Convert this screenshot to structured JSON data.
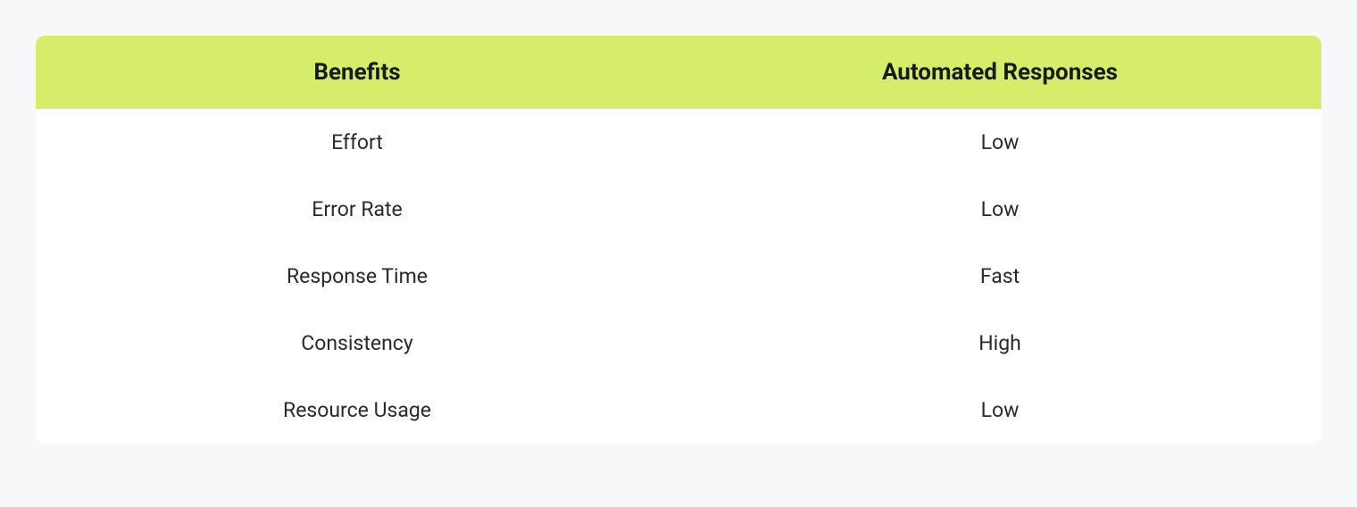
{
  "table": {
    "type": "table",
    "header_background_color": "#d5ed6b",
    "body_background_color": "#ffffff",
    "page_background_color": "#f7f8fa",
    "header_text_color": "#1a1a1a",
    "body_text_color": "#2a2a2a",
    "header_font_size": 26,
    "body_font_size": 23,
    "header_font_weight": 700,
    "body_font_weight": 400,
    "border_radius": 10,
    "columns": [
      "Benefits",
      "Automated Responses"
    ],
    "rows": [
      [
        "Effort",
        "Low"
      ],
      [
        "Error Rate",
        "Low"
      ],
      [
        "Response Time",
        "Fast"
      ],
      [
        "Consistency",
        "High"
      ],
      [
        "Resource Usage",
        "Low"
      ]
    ]
  }
}
